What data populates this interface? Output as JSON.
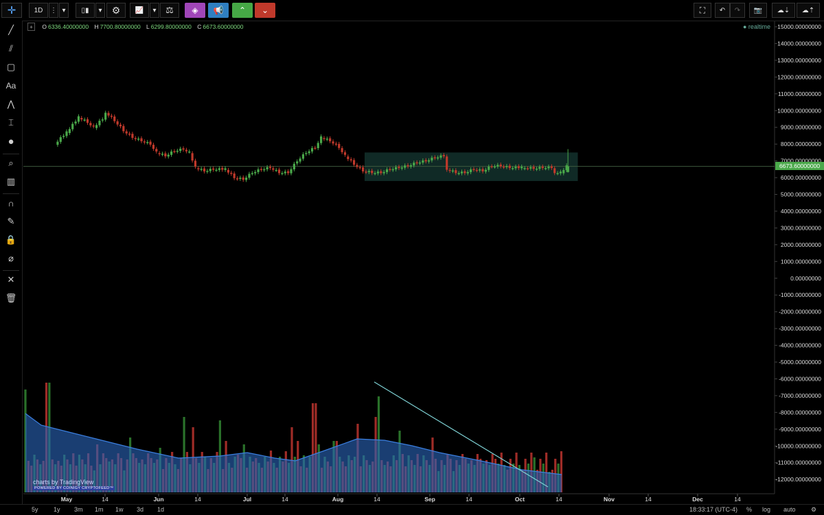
{
  "toolbar": {
    "interval": "1D",
    "buttons": [
      "crosshair",
      "more",
      "bar-style",
      "chart-type",
      "settings",
      "indicators",
      "compare",
      "cube",
      "broadcast",
      "buy",
      "sell"
    ],
    "right_buttons": [
      "fullscreen",
      "undo",
      "redo",
      "snapshot",
      "cloud-load",
      "cloud-save"
    ]
  },
  "legend": {
    "o_label": "O",
    "o": "6336.40000000",
    "h_label": "H",
    "h": "7700.80000000",
    "l_label": "L",
    "l": "6299.80000000",
    "c_label": "C",
    "c": "6673.60000000"
  },
  "realtime": "● realtime",
  "last_price_tag": "6673.60000000",
  "bottom": {
    "ranges": [
      "5y",
      "1y",
      "3m",
      "1m",
      "1w",
      "3d",
      "1d"
    ],
    "time": "18:33:17 (UTC-4)",
    "percent": "%",
    "log": "log",
    "auto": "auto",
    "gear": "⚙"
  },
  "watermark": {
    "title": "charts by TradingView",
    "sub": "POWERED BY COINIGY CRYPTOFEED™"
  },
  "colors": {
    "up": "#4aa84a",
    "down": "#c0392b",
    "vol_up": "#2f7d2f",
    "vol_down": "#b0312b",
    "vol_ma": "#2a64b8",
    "range_box": "rgba(41,110,100,0.38)",
    "trendline": "#7fd3d6"
  },
  "chart_data": {
    "type": "candlestick",
    "title": "",
    "x_ticks": [
      "May",
      "14",
      "Jun",
      "14",
      "Jul",
      "14",
      "Aug",
      "14",
      "Sep",
      "14",
      "Oct",
      "14",
      "Nov",
      "14",
      "Dec",
      "14"
    ],
    "y_ticks": [
      "15000.00000000",
      "14000.00000000",
      "13000.00000000",
      "12000.00000000",
      "11000.00000000",
      "10000.00000000",
      "9000.00000000",
      "8000.00000000",
      "7000.00000000",
      "6000.00000000",
      "5000.00000000",
      "4000.00000000",
      "3000.00000000",
      "2000.00000000",
      "1000.00000000",
      "0.00000000",
      "-1000.00000000",
      "-2000.00000000",
      "-3000.00000000",
      "-4000.00000000",
      "-5000.00000000",
      "-6000.00000000",
      "-7000.00000000",
      "-8000.00000000",
      "-9000.00000000",
      "-10000.00000000",
      "-11000.00000000",
      "-12000.00000000"
    ],
    "ylim": [
      -12500,
      15000
    ],
    "close_series_approx": [
      {
        "x": "Apr 28",
        "y": 8000
      },
      {
        "x": "May 1",
        "y": 8700
      },
      {
        "x": "May 5",
        "y": 9600
      },
      {
        "x": "May 8",
        "y": 9300
      },
      {
        "x": "May 10",
        "y": 9000
      },
      {
        "x": "May 13",
        "y": 9500
      },
      {
        "x": "May 14",
        "y": 9900
      },
      {
        "x": "May 17",
        "y": 9400
      },
      {
        "x": "May 20",
        "y": 8800
      },
      {
        "x": "May 23",
        "y": 8400
      },
      {
        "x": "May 26",
        "y": 8200
      },
      {
        "x": "May 29",
        "y": 8000
      },
      {
        "x": "Jun 1",
        "y": 7500
      },
      {
        "x": "Jun 4",
        "y": 7300
      },
      {
        "x": "Jun 7",
        "y": 7600
      },
      {
        "x": "Jun 10",
        "y": 7700
      },
      {
        "x": "Jun 12",
        "y": 7500
      },
      {
        "x": "Jun 14",
        "y": 6600
      },
      {
        "x": "Jun 17",
        "y": 6400
      },
      {
        "x": "Jun 20",
        "y": 6500
      },
      {
        "x": "Jun 24",
        "y": 6500
      },
      {
        "x": "Jun 27",
        "y": 6000
      },
      {
        "x": "Jun 30",
        "y": 5900
      },
      {
        "x": "Jul 2",
        "y": 6300
      },
      {
        "x": "Jul 5",
        "y": 6500
      },
      {
        "x": "Jul 8",
        "y": 6600
      },
      {
        "x": "Jul 11",
        "y": 6300
      },
      {
        "x": "Jul 14",
        "y": 6300
      },
      {
        "x": "Jul 17",
        "y": 7000
      },
      {
        "x": "Jul 20",
        "y": 7500
      },
      {
        "x": "Jul 23",
        "y": 7800
      },
      {
        "x": "Jul 25",
        "y": 8400
      },
      {
        "x": "Jul 28",
        "y": 8200
      },
      {
        "x": "Jul 31",
        "y": 7800
      },
      {
        "x": "Aug 3",
        "y": 7300
      },
      {
        "x": "Aug 6",
        "y": 6800
      },
      {
        "x": "Aug 9",
        "y": 6400
      },
      {
        "x": "Aug 12",
        "y": 6300
      },
      {
        "x": "Aug 15",
        "y": 6300
      },
      {
        "x": "Aug 18",
        "y": 6500
      },
      {
        "x": "Aug 21",
        "y": 6600
      },
      {
        "x": "Aug 24",
        "y": 6700
      },
      {
        "x": "Aug 27",
        "y": 6900
      },
      {
        "x": "Aug 30",
        "y": 7000
      },
      {
        "x": "Sep 2",
        "y": 7200
      },
      {
        "x": "Sep 5",
        "y": 7300
      },
      {
        "x": "Sep 6",
        "y": 6500
      },
      {
        "x": "Sep 9",
        "y": 6300
      },
      {
        "x": "Sep 12",
        "y": 6300
      },
      {
        "x": "Sep 15",
        "y": 6500
      },
      {
        "x": "Sep 18",
        "y": 6400
      },
      {
        "x": "Sep 21",
        "y": 6700
      },
      {
        "x": "Sep 24",
        "y": 6700
      },
      {
        "x": "Sep 27",
        "y": 6600
      },
      {
        "x": "Oct 1",
        "y": 6600
      },
      {
        "x": "Oct 4",
        "y": 6550
      },
      {
        "x": "Oct 7",
        "y": 6600
      },
      {
        "x": "Oct 10",
        "y": 6600
      },
      {
        "x": "Oct 11",
        "y": 6300
      },
      {
        "x": "Oct 13",
        "y": 6300
      },
      {
        "x": "Oct 15",
        "y": 6673.6
      }
    ],
    "last_candle": {
      "open": 6336.4,
      "high": 7700.8,
      "low": 6299.8,
      "close": 6673.6
    },
    "range_box": {
      "x_start": "Aug 10",
      "x_end": "Oct 16",
      "y_low": 5800,
      "y_high": 7500
    },
    "volume": {
      "ma_approx": [
        {
          "x": "Apr 28",
          "v": "high"
        },
        {
          "x": "May 14",
          "v": "high"
        },
        {
          "x": "Jun 1",
          "v": "mid"
        },
        {
          "x": "Jul 1",
          "v": "mid"
        },
        {
          "x": "Aug 1",
          "v": "mid-high"
        },
        {
          "x": "Aug 14",
          "v": "high"
        },
        {
          "x": "Sep 14",
          "v": "mid"
        },
        {
          "x": "Oct 14",
          "v": "low"
        }
      ],
      "trendline": {
        "from": "Aug 13",
        "to": "Oct 11"
      }
    }
  }
}
